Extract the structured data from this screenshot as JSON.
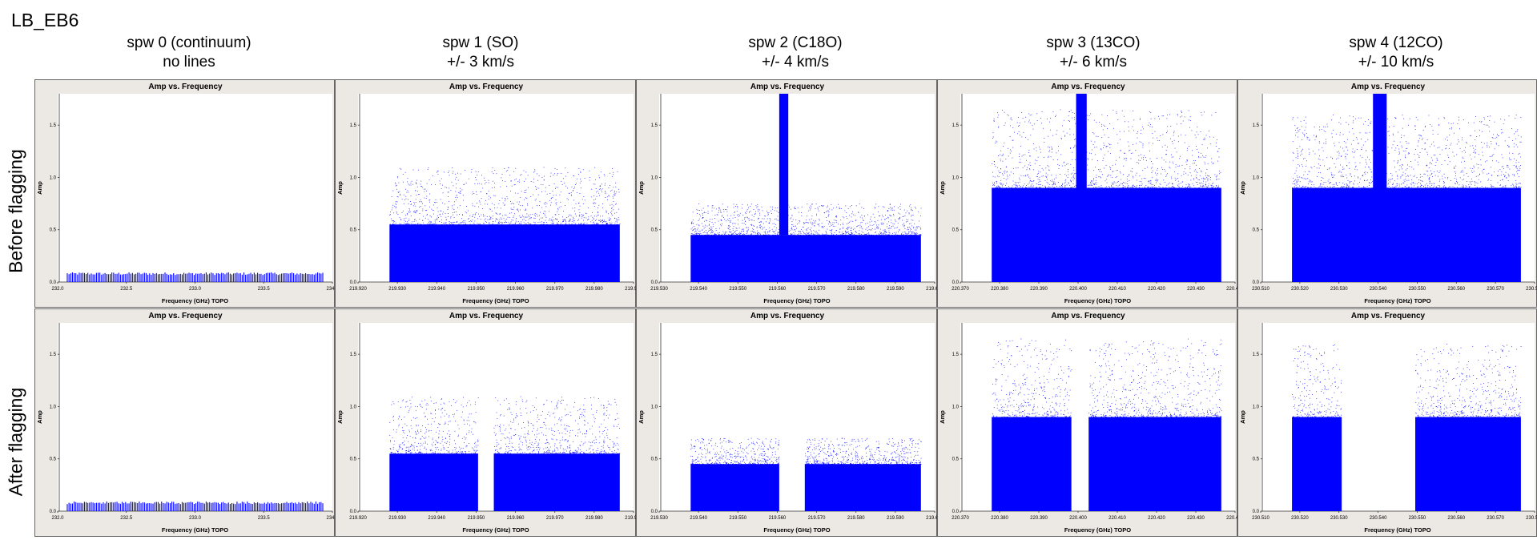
{
  "figure_title": "LB_EB6",
  "row_labels": [
    "Before flagging",
    "After flagging"
  ],
  "columns": [
    {
      "title": "spw 0 (continuum)",
      "subtitle": "no lines"
    },
    {
      "title": "spw 1 (SO)",
      "subtitle": "+/- 3 km/s"
    },
    {
      "title": "spw 2 (C18O)",
      "subtitle": "+/- 4 km/s"
    },
    {
      "title": "spw 3 (13CO)",
      "subtitle": "+/- 6 km/s"
    },
    {
      "title": "spw 4 (12CO)",
      "subtitle": "+/- 10 km/s"
    }
  ],
  "colors": {
    "points": "#0000ff",
    "panel_bg": "#ece9e4",
    "plot_bg": "#ffffff"
  },
  "chart_data": [
    {
      "type": "scatter",
      "panel": "spw 0 before",
      "title": "Amp vs. Frequency",
      "xlabel": "Frequency (GHz) TOPO",
      "ylabel": "Amp",
      "xlim": [
        232.0,
        234.0
      ],
      "ylim": [
        0,
        1.8
      ],
      "xticks": [
        "232.0",
        "232.5",
        "233.0",
        "233.5",
        "234.0"
      ],
      "yticks": [
        "0.0",
        "0.5",
        "1.0",
        "1.5"
      ],
      "series": [
        {
          "x_range": [
            232.07,
            233.93
          ],
          "amp_core": 0.08,
          "amp_max": 0.11,
          "continuum": true
        }
      ]
    },
    {
      "type": "scatter",
      "panel": "spw 1 before",
      "title": "Amp vs. Frequency",
      "xlabel": "Frequency (GHz) TOPO",
      "ylabel": "Amp",
      "xlim": [
        219.92,
        219.99
      ],
      "ylim": [
        0,
        1.8
      ],
      "xticks": [
        "219.920",
        "219.930",
        "219.940",
        "219.950",
        "219.960",
        "219.970",
        "219.980",
        "219.990"
      ],
      "yticks": [
        "0.0",
        "0.5",
        "1.0",
        "1.5"
      ],
      "series": [
        {
          "x_range": [
            219.928,
            219.9865
          ],
          "amp_core": 0.55,
          "amp_max": 1.1
        }
      ]
    },
    {
      "type": "scatter",
      "panel": "spw 2 before",
      "title": "Amp vs. Frequency",
      "xlabel": "Frequency (GHz) TOPO",
      "ylabel": "Amp",
      "xlim": [
        219.53,
        219.6
      ],
      "ylim": [
        0,
        1.8
      ],
      "xticks": [
        "219.530",
        "219.540",
        "219.550",
        "219.560",
        "219.570",
        "219.580",
        "219.590",
        "219.600"
      ],
      "yticks": [
        "0.0",
        "0.5",
        "1.0",
        "1.5"
      ],
      "series": [
        {
          "x_range": [
            219.538,
            219.5965
          ],
          "amp_core": 0.45,
          "amp_max": 0.75,
          "line": {
            "x_range": [
              219.5605,
              219.5628
            ],
            "amp_max": 1.8
          }
        }
      ]
    },
    {
      "type": "scatter",
      "panel": "spw 3 before",
      "title": "Amp vs. Frequency",
      "xlabel": "Frequency (GHz) TOPO",
      "ylabel": "Amp",
      "xlim": [
        220.37,
        220.44
      ],
      "ylim": [
        0,
        1.8
      ],
      "xticks": [
        "220.370",
        "220.380",
        "220.390",
        "220.400",
        "220.410",
        "220.420",
        "220.430",
        "220.440"
      ],
      "yticks": [
        "0.0",
        "0.5",
        "1.0",
        "1.5"
      ],
      "series": [
        {
          "x_range": [
            220.378,
            220.4365
          ],
          "amp_core": 0.9,
          "amp_max": 1.65,
          "line": {
            "x_range": [
              220.3995,
              220.4022
            ],
            "amp_max": 1.8
          }
        }
      ]
    },
    {
      "type": "scatter",
      "panel": "spw 4 before",
      "title": "Amp vs. Frequency",
      "xlabel": "Frequency (GHz) TOPO",
      "ylabel": "Amp",
      "xlim": [
        230.51,
        230.58
      ],
      "ylim": [
        0,
        1.8
      ],
      "xticks": [
        "230.510",
        "230.520",
        "230.530",
        "230.540",
        "230.550",
        "230.560",
        "230.570",
        "230.580"
      ],
      "yticks": [
        "0.0",
        "0.5",
        "1.0",
        "1.5"
      ],
      "series": [
        {
          "x_range": [
            230.518,
            230.5765
          ],
          "amp_core": 0.9,
          "amp_max": 1.6,
          "line": {
            "x_range": [
              230.5387,
              230.5422
            ],
            "amp_max": 1.8
          }
        }
      ]
    },
    {
      "type": "scatter",
      "panel": "spw 0 after",
      "title": "Amp vs. Frequency",
      "xlabel": "Frequency (GHz) TOPO",
      "ylabel": "Amp",
      "xlim": [
        232.0,
        234.0
      ],
      "ylim": [
        0,
        1.8
      ],
      "xticks": [
        "232.0",
        "232.5",
        "233.0",
        "233.5",
        "234.0"
      ],
      "yticks": [
        "0.0",
        "0.5",
        "1.0",
        "1.5"
      ],
      "series": [
        {
          "x_range": [
            232.07,
            233.93
          ],
          "amp_core": 0.08,
          "amp_max": 0.11,
          "continuum": true
        }
      ]
    },
    {
      "type": "scatter",
      "panel": "spw 1 after",
      "title": "Amp vs. Frequency",
      "xlabel": "Frequency (GHz) TOPO",
      "ylabel": "Amp",
      "xlim": [
        219.92,
        219.99
      ],
      "ylim": [
        0,
        1.8
      ],
      "xticks": [
        "219.920",
        "219.930",
        "219.940",
        "219.950",
        "219.960",
        "219.970",
        "219.980",
        "219.990"
      ],
      "yticks": [
        "0.0",
        "0.5",
        "1.0",
        "1.5"
      ],
      "series": [
        {
          "x_range": [
            219.928,
            219.9865
          ],
          "amp_core": 0.55,
          "amp_max": 1.1,
          "gap": [
            219.9505,
            219.9545
          ]
        }
      ]
    },
    {
      "type": "scatter",
      "panel": "spw 2 after",
      "title": "Amp vs. Frequency",
      "xlabel": "Frequency (GHz) TOPO",
      "ylabel": "Amp",
      "xlim": [
        219.53,
        219.6
      ],
      "ylim": [
        0,
        1.8
      ],
      "xticks": [
        "219.530",
        "219.540",
        "219.550",
        "219.560",
        "219.570",
        "219.580",
        "219.590",
        "219.600"
      ],
      "yticks": [
        "0.0",
        "0.5",
        "1.0",
        "1.5"
      ],
      "series": [
        {
          "x_range": [
            219.538,
            219.5965
          ],
          "amp_core": 0.45,
          "amp_max": 0.7,
          "gap": [
            219.5605,
            219.567
          ]
        }
      ]
    },
    {
      "type": "scatter",
      "panel": "spw 3 after",
      "title": "Amp vs. Frequency",
      "xlabel": "Frequency (GHz) TOPO",
      "ylabel": "Amp",
      "xlim": [
        220.37,
        220.44
      ],
      "ylim": [
        0,
        1.8
      ],
      "xticks": [
        "220.370",
        "220.380",
        "220.390",
        "220.400",
        "220.410",
        "220.420",
        "220.430",
        "220.440"
      ],
      "yticks": [
        "0.0",
        "0.5",
        "1.0",
        "1.5"
      ],
      "series": [
        {
          "x_range": [
            220.378,
            220.4365
          ],
          "amp_core": 0.9,
          "amp_max": 1.65,
          "gap": [
            220.3983,
            220.4027
          ]
        }
      ]
    },
    {
      "type": "scatter",
      "panel": "spw 4 after",
      "title": "Amp vs. Frequency",
      "xlabel": "Frequency (GHz) TOPO",
      "ylabel": "Amp",
      "xlim": [
        230.51,
        230.58
      ],
      "ylim": [
        0,
        1.8
      ],
      "xticks": [
        "230.510",
        "230.520",
        "230.530",
        "230.540",
        "230.550",
        "230.560",
        "230.570",
        "230.580"
      ],
      "yticks": [
        "0.0",
        "0.5",
        "1.0",
        "1.5"
      ],
      "series": [
        {
          "x_range": [
            230.518,
            230.5765
          ],
          "amp_core": 0.9,
          "amp_max": 1.6,
          "gap": [
            230.5307,
            230.5495
          ]
        }
      ]
    }
  ]
}
